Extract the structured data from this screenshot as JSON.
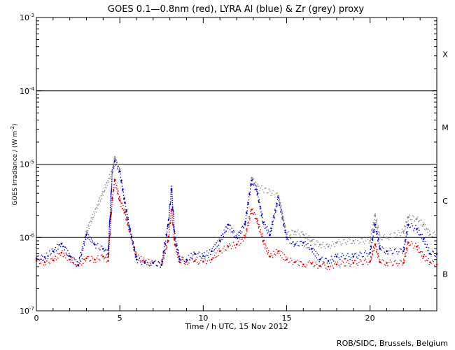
{
  "chart_data": {
    "type": "scatter",
    "title": "GOES 0.1—0.8nm (red), LYRA Al (blue) & Zr (grey) proxy",
    "xlabel": "Time / h UTC, 15 Nov 2012",
    "ylabel_text": "GOES Irradiance / (W m",
    "ylabel_exponent": "-2",
    "ylabel_close": ")",
    "xlim": [
      0,
      24
    ],
    "ylim": [
      1e-07,
      0.001
    ],
    "yscale": "log",
    "x_ticks": [
      {
        "value": 0,
        "label": "0"
      },
      {
        "value": 5,
        "label": "5"
      },
      {
        "value": 10,
        "label": "10"
      },
      {
        "value": 15,
        "label": "15"
      },
      {
        "value": 20,
        "label": "20"
      }
    ],
    "y_ticks": [
      {
        "value": 1e-07,
        "base": "10",
        "exp": "-7"
      },
      {
        "value": 1e-06,
        "base": "10",
        "exp": "-6"
      },
      {
        "value": 1e-05,
        "base": "10",
        "exp": "-5"
      },
      {
        "value": 0.0001,
        "base": "10",
        "exp": "-4"
      },
      {
        "value": 0.001,
        "base": "10",
        "exp": "-3"
      }
    ],
    "class_lines": [
      1e-06,
      1e-05,
      0.0001
    ],
    "flare_classes": [
      {
        "label": "X",
        "value": 0.000316
      },
      {
        "label": "M",
        "value": 3.16e-05
      },
      {
        "label": "C",
        "value": 3.16e-06
      },
      {
        "label": "B",
        "value": 3.16e-07
      }
    ],
    "series": [
      {
        "color": "#dd0000",
        "points": [
          [
            0,
            4.8e-07
          ],
          [
            0.5,
            4.6e-07
          ],
          [
            1,
            4.9e-07
          ],
          [
            1.5,
            6.2e-07
          ],
          [
            2,
            5e-07
          ],
          [
            2.5,
            4.2e-07
          ],
          [
            3,
            5.2e-07
          ],
          [
            3.5,
            5e-07
          ],
          [
            4,
            5.5e-07
          ],
          [
            4.3,
            4.8e-07
          ],
          [
            4.55,
            3.4e-06
          ],
          [
            4.7,
            6e-06
          ],
          [
            5.0,
            3.2e-06
          ],
          [
            5.3,
            2.2e-06
          ],
          [
            5.6,
            1.2e-06
          ],
          [
            6.0,
            5.5e-07
          ],
          [
            6.5,
            4.7e-07
          ],
          [
            7.0,
            4.5e-07
          ],
          [
            7.5,
            4.3e-07
          ],
          [
            7.9,
            9e-07
          ],
          [
            8.1,
            2.4e-06
          ],
          [
            8.3,
            8e-07
          ],
          [
            8.6,
            4.6e-07
          ],
          [
            9,
            4.7e-07
          ],
          [
            9.5,
            4.8e-07
          ],
          [
            10,
            4.7e-07
          ],
          [
            10.5,
            5e-07
          ],
          [
            11,
            6.5e-07
          ],
          [
            11.5,
            7.5e-07
          ],
          [
            12,
            8e-07
          ],
          [
            12.5,
            1e-06
          ],
          [
            12.9,
            2.4e-06
          ],
          [
            13.2,
            1.8e-06
          ],
          [
            13.6,
            9e-07
          ],
          [
            14,
            5.5e-07
          ],
          [
            14.5,
            6.5e-07
          ],
          [
            15,
            5e-07
          ],
          [
            15.5,
            4.6e-07
          ],
          [
            16,
            4.3e-07
          ],
          [
            16.5,
            4.4e-07
          ],
          [
            17,
            4.1e-07
          ],
          [
            17.5,
            4e-07
          ],
          [
            18,
            4.3e-07
          ],
          [
            19,
            4.5e-07
          ],
          [
            20,
            4.7e-07
          ],
          [
            20.3,
            8e-07
          ],
          [
            20.6,
            4.6e-07
          ],
          [
            21,
            4.5e-07
          ],
          [
            22,
            4.5e-07
          ],
          [
            22.3,
            8.5e-07
          ],
          [
            22.8,
            7.5e-07
          ],
          [
            23.2,
            5.5e-07
          ],
          [
            23.6,
            4.6e-07
          ],
          [
            24,
            4.3e-07
          ]
        ]
      },
      {
        "color": "#0000cc",
        "points": [
          [
            0,
            5.2e-07
          ],
          [
            0.5,
            5.4e-07
          ],
          [
            1,
            6.5e-07
          ],
          [
            1.5,
            8.2e-07
          ],
          [
            2,
            5.6e-07
          ],
          [
            2.5,
            4.2e-07
          ],
          [
            3,
            1.1e-06
          ],
          [
            3.5,
            8e-07
          ],
          [
            4,
            7e-07
          ],
          [
            4.3,
            6e-07
          ],
          [
            4.55,
            8e-06
          ],
          [
            4.7,
            1.1e-05
          ],
          [
            5.0,
            8e-06
          ],
          [
            5.3,
            3e-06
          ],
          [
            5.6,
            1.3e-06
          ],
          [
            6.0,
            5e-07
          ],
          [
            6.5,
            4.5e-07
          ],
          [
            7.0,
            4.5e-07
          ],
          [
            7.5,
            4.2e-07
          ],
          [
            7.9,
            1.5e-06
          ],
          [
            8.1,
            4.6e-06
          ],
          [
            8.3,
            1e-06
          ],
          [
            8.6,
            5e-07
          ],
          [
            9,
            5e-07
          ],
          [
            9.5,
            6e-07
          ],
          [
            10,
            5.6e-07
          ],
          [
            10.5,
            6.5e-07
          ],
          [
            11,
            9e-07
          ],
          [
            11.5,
            1.5e-06
          ],
          [
            12,
            1e-06
          ],
          [
            12.5,
            1.5e-06
          ],
          [
            12.9,
            6e-06
          ],
          [
            13.2,
            4.5e-06
          ],
          [
            13.6,
            1.6e-06
          ],
          [
            14,
            1.1e-06
          ],
          [
            14.5,
            3.5e-06
          ],
          [
            15,
            1e-06
          ],
          [
            15.5,
            8e-07
          ],
          [
            16,
            8.5e-07
          ],
          [
            16.5,
            7e-07
          ],
          [
            17,
            5e-07
          ],
          [
            17.5,
            4.8e-07
          ],
          [
            18,
            5.5e-07
          ],
          [
            19,
            5.5e-07
          ],
          [
            20,
            6.2e-07
          ],
          [
            20.3,
            1.5e-06
          ],
          [
            20.6,
            7e-07
          ],
          [
            21,
            6.5e-07
          ],
          [
            22,
            6.5e-07
          ],
          [
            22.3,
            1.5e-06
          ],
          [
            22.8,
            1.3e-06
          ],
          [
            23.2,
            9.5e-07
          ],
          [
            23.6,
            6e-07
          ],
          [
            24,
            6e-07
          ]
        ]
      },
      {
        "color": "#8a8a8a",
        "points": [
          [
            3,
            1.2e-06
          ],
          [
            4.55,
            8e-06
          ],
          [
            4.7,
            1.2e-05
          ],
          [
            5.0,
            8.5e-06
          ],
          [
            8.1,
            5e-06
          ],
          [
            12.9,
            6.5e-06
          ],
          [
            13.2,
            5e-06
          ],
          [
            14.5,
            3.7e-06
          ],
          [
            15,
            1.1e-06
          ],
          [
            15.5,
            1.2e-06
          ],
          [
            16,
            1.1e-06
          ],
          [
            16.5,
            9e-07
          ],
          [
            17,
            8e-07
          ],
          [
            17.5,
            7.5e-07
          ],
          [
            18,
            8.5e-07
          ],
          [
            19,
            9e-07
          ],
          [
            20,
            9e-07
          ],
          [
            20.3,
            2e-06
          ],
          [
            20.6,
            1e-06
          ],
          [
            21,
            1e-06
          ],
          [
            22,
            1.2e-06
          ],
          [
            22.3,
            1.9e-06
          ],
          [
            22.8,
            1.8e-06
          ],
          [
            23.2,
            1.5e-06
          ],
          [
            23.6,
            1.1e-06
          ],
          [
            24,
            1.1e-06
          ]
        ]
      }
    ]
  },
  "footer": {
    "credit": "ROB/SIDC, Brussels, Belgium"
  }
}
